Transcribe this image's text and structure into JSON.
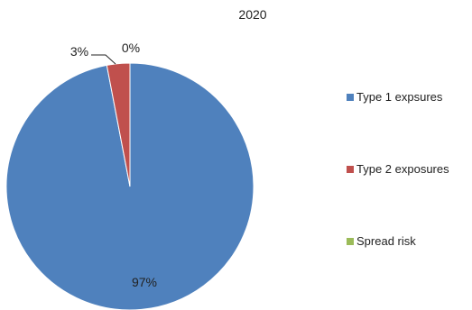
{
  "chart_data": {
    "type": "pie",
    "title": "2020",
    "categories": [
      "Type 1 expsures",
      "Type 2 exposures",
      "Spread risk"
    ],
    "values": [
      97,
      3,
      0
    ],
    "data_labels": [
      "97%",
      "3%",
      "0%"
    ],
    "colors": [
      "#4F81BD",
      "#C0504D",
      "#9BBB59"
    ],
    "legend_position": "right"
  }
}
